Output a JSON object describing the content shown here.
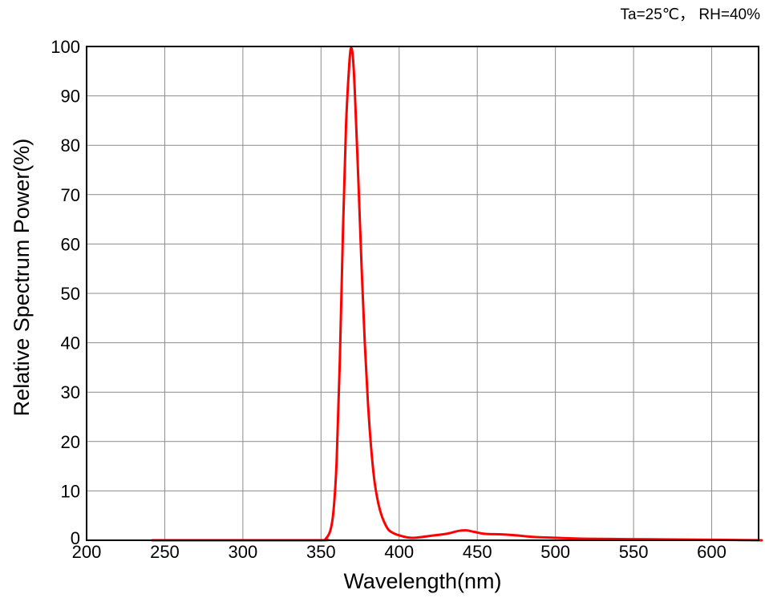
{
  "chart_data": {
    "type": "line",
    "annotation": "Ta=25℃， RH=40%",
    "xlabel": "Wavelength(nm)",
    "ylabel": "Relative Spectrum Power(%)",
    "xlim": [
      200,
      630
    ],
    "ylim": [
      0,
      100
    ],
    "x_ticks": [
      200,
      250,
      300,
      350,
      400,
      450,
      500,
      550,
      600
    ],
    "y_ticks": [
      0,
      10,
      20,
      30,
      40,
      50,
      60,
      70,
      80,
      90,
      100
    ],
    "grid": true,
    "line_color": "#ff0000",
    "series": [
      {
        "x": [
          242,
          300,
          350,
          353,
          356,
          358,
          360,
          362,
          364,
          366,
          368,
          369,
          370,
          371,
          372,
          374,
          376,
          378,
          380,
          382,
          384,
          386,
          388,
          390,
          393,
          396,
          400,
          405,
          410,
          420,
          430,
          438,
          443,
          448,
          455,
          465,
          475,
          485,
          500,
          520,
          560,
          600,
          632
        ],
        "y": [
          0,
          0,
          0,
          0.3,
          2,
          6,
          16,
          36,
          62,
          84,
          96,
          99.5,
          99,
          95,
          88,
          72,
          55,
          40,
          28,
          19,
          12.5,
          8.5,
          5.8,
          4,
          2.2,
          1.5,
          1,
          0.6,
          0.5,
          0.9,
          1.3,
          1.9,
          2,
          1.7,
          1.3,
          1.2,
          1.0,
          0.7,
          0.5,
          0.3,
          0.2,
          0.1,
          0
        ]
      }
    ]
  }
}
